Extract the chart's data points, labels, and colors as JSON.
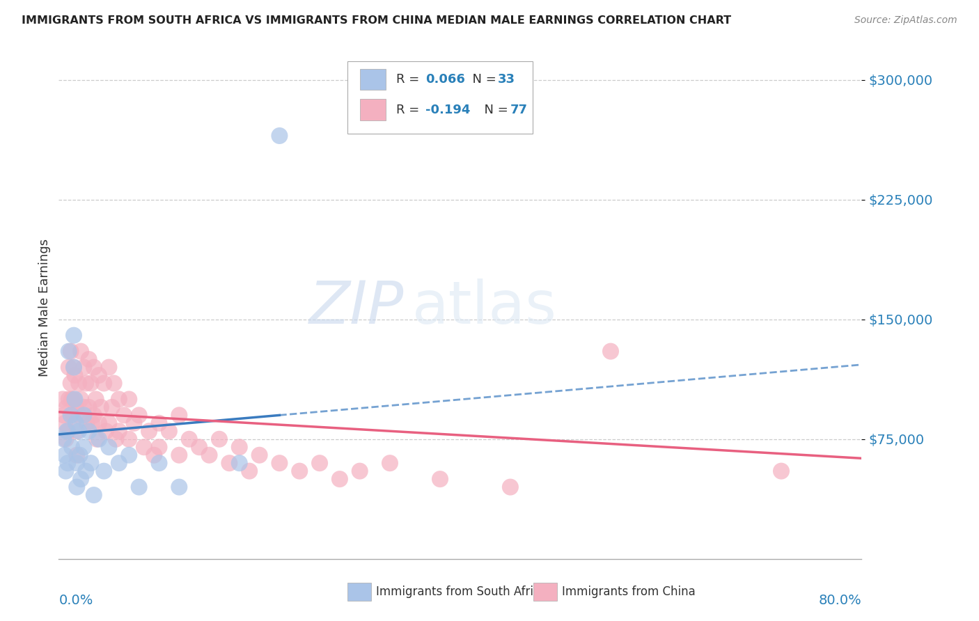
{
  "title": "IMMIGRANTS FROM SOUTH AFRICA VS IMMIGRANTS FROM CHINA MEDIAN MALE EARNINGS CORRELATION CHART",
  "source": "Source: ZipAtlas.com",
  "ylabel": "Median Male Earnings",
  "yticks": [
    75000,
    150000,
    225000,
    300000
  ],
  "ytick_labels": [
    "$75,000",
    "$150,000",
    "$225,000",
    "$300,000"
  ],
  "xlim": [
    0.0,
    0.8
  ],
  "ylim": [
    0,
    315000
  ],
  "color_sa": "#aac4e8",
  "color_china": "#f4b0c0",
  "line_color_sa": "#3a7bbf",
  "line_color_china": "#e86080",
  "R_sa": 0.066,
  "N_sa": 33,
  "R_china": -0.194,
  "N_china": 77,
  "sa_points_x": [
    0.005,
    0.006,
    0.007,
    0.008,
    0.009,
    0.01,
    0.012,
    0.013,
    0.015,
    0.015,
    0.016,
    0.017,
    0.018,
    0.018,
    0.02,
    0.021,
    0.022,
    0.025,
    0.025,
    0.027,
    0.03,
    0.032,
    0.035,
    0.04,
    0.045,
    0.05,
    0.06,
    0.07,
    0.08,
    0.1,
    0.12,
    0.18,
    0.22
  ],
  "sa_points_y": [
    75000,
    65000,
    55000,
    80000,
    60000,
    130000,
    90000,
    70000,
    140000,
    120000,
    100000,
    85000,
    60000,
    45000,
    80000,
    65000,
    50000,
    90000,
    70000,
    55000,
    80000,
    60000,
    40000,
    75000,
    55000,
    70000,
    60000,
    65000,
    45000,
    60000,
    45000,
    60000,
    265000
  ],
  "china_points_x": [
    0.004,
    0.005,
    0.006,
    0.007,
    0.008,
    0.009,
    0.01,
    0.01,
    0.012,
    0.012,
    0.013,
    0.014,
    0.015,
    0.015,
    0.016,
    0.017,
    0.018,
    0.018,
    0.02,
    0.02,
    0.022,
    0.022,
    0.025,
    0.025,
    0.027,
    0.028,
    0.03,
    0.03,
    0.032,
    0.033,
    0.035,
    0.035,
    0.037,
    0.038,
    0.04,
    0.04,
    0.042,
    0.045,
    0.047,
    0.05,
    0.05,
    0.053,
    0.055,
    0.057,
    0.06,
    0.06,
    0.065,
    0.07,
    0.07,
    0.075,
    0.08,
    0.085,
    0.09,
    0.095,
    0.1,
    0.1,
    0.11,
    0.12,
    0.12,
    0.13,
    0.14,
    0.15,
    0.16,
    0.17,
    0.18,
    0.19,
    0.2,
    0.22,
    0.24,
    0.26,
    0.28,
    0.3,
    0.33,
    0.38,
    0.45,
    0.55,
    0.72
  ],
  "china_points_y": [
    100000,
    90000,
    85000,
    75000,
    95000,
    80000,
    120000,
    100000,
    130000,
    110000,
    100000,
    90000,
    120000,
    100000,
    115000,
    95000,
    80000,
    65000,
    110000,
    90000,
    130000,
    100000,
    120000,
    95000,
    110000,
    85000,
    125000,
    95000,
    110000,
    85000,
    120000,
    90000,
    100000,
    75000,
    115000,
    85000,
    95000,
    110000,
    80000,
    120000,
    85000,
    95000,
    110000,
    75000,
    100000,
    80000,
    90000,
    100000,
    75000,
    85000,
    90000,
    70000,
    80000,
    65000,
    85000,
    70000,
    80000,
    90000,
    65000,
    75000,
    70000,
    65000,
    75000,
    60000,
    70000,
    55000,
    65000,
    60000,
    55000,
    60000,
    50000,
    55000,
    60000,
    50000,
    45000,
    130000,
    55000
  ]
}
